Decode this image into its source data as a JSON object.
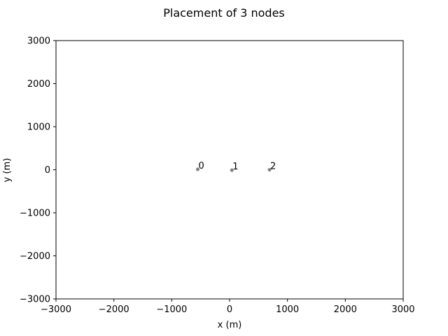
{
  "chart_data": {
    "type": "scatter",
    "title": "Placement of 3 nodes",
    "xlabel": "x (m)",
    "ylabel": "y (m)",
    "xlim": [
      -3000,
      3000
    ],
    "ylim": [
      -3000,
      3000
    ],
    "xticks": [
      -3000,
      -2000,
      -1000,
      0,
      1000,
      2000,
      3000
    ],
    "yticks": [
      -3000,
      -2000,
      -1000,
      0,
      1000,
      2000,
      3000
    ],
    "grid": false,
    "point_color": "#808080",
    "points": [
      {
        "label": "0",
        "x": -550,
        "y": 10
      },
      {
        "label": "1",
        "x": 40,
        "y": -10
      },
      {
        "label": "2",
        "x": 690,
        "y": 0
      }
    ]
  }
}
